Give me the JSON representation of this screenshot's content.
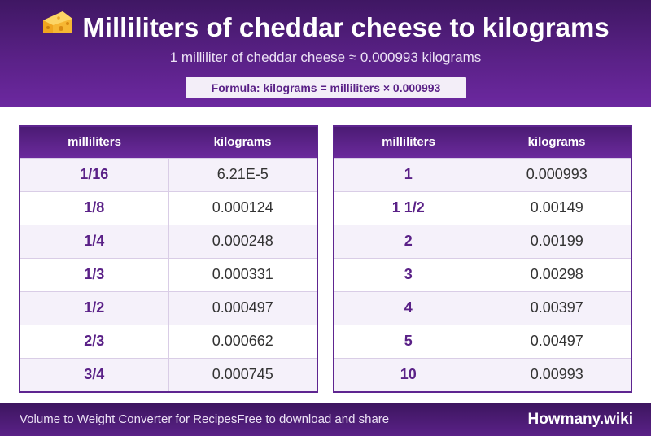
{
  "header": {
    "title": "Milliliters of cheddar cheese to kilograms",
    "icon": "cheese-icon",
    "subtitle": "1 milliliter of cheddar cheese ≈ 0.000993 kilograms",
    "formula": "Formula: kilograms = milliliters × 0.000993"
  },
  "colors": {
    "primary": "#5a2187",
    "header_dark": "#3f1763",
    "row_alt": "#f5f1fa"
  },
  "tables": [
    {
      "columns": [
        "milliliters",
        "kilograms"
      ],
      "rows": [
        [
          "1/16",
          "6.21E-5"
        ],
        [
          "1/8",
          "0.000124"
        ],
        [
          "1/4",
          "0.000248"
        ],
        [
          "1/3",
          "0.000331"
        ],
        [
          "1/2",
          "0.000497"
        ],
        [
          "2/3",
          "0.000662"
        ],
        [
          "3/4",
          "0.000745"
        ]
      ]
    },
    {
      "columns": [
        "milliliters",
        "kilograms"
      ],
      "rows": [
        [
          "1",
          "0.000993"
        ],
        [
          "1 1/2",
          "0.00149"
        ],
        [
          "2",
          "0.00199"
        ],
        [
          "3",
          "0.00298"
        ],
        [
          "4",
          "0.00397"
        ],
        [
          "5",
          "0.00497"
        ],
        [
          "10",
          "0.00993"
        ]
      ]
    }
  ],
  "footer": {
    "left_a": "Volume to Weight Converter for Recipes",
    "left_b": "Free to download and share",
    "brand": "Howmany.wiki"
  }
}
